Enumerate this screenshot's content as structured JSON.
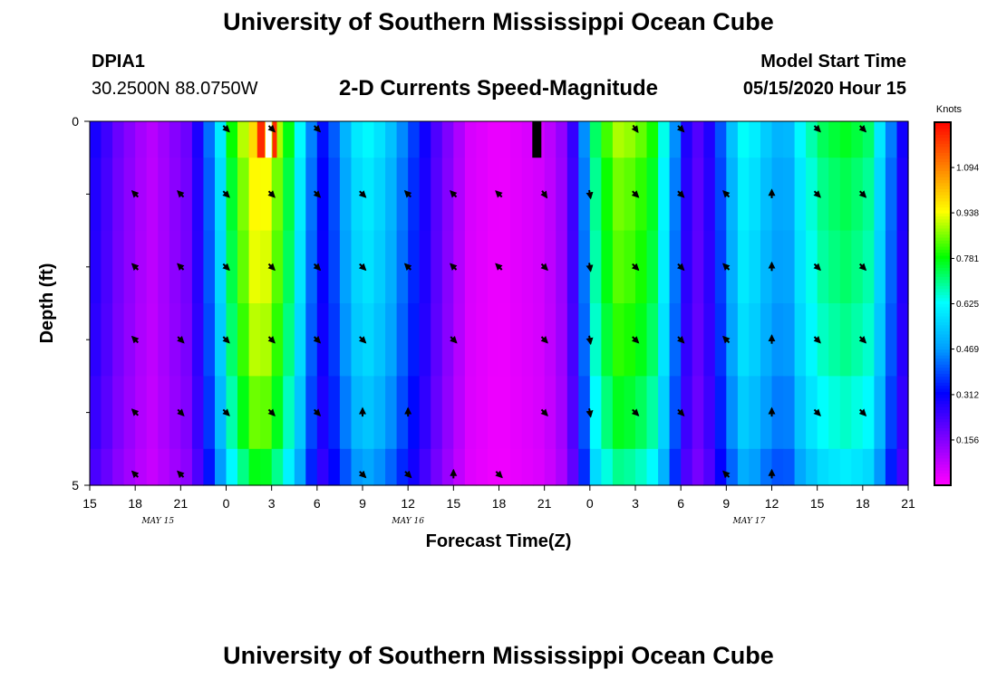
{
  "page": {
    "title_top": "University of Southern Mississippi Ocean Cube",
    "title_bottom": "University of Southern Mississippi Ocean Cube",
    "station": "DPIA1",
    "coords": "30.2500N 88.0750W",
    "plot_title": "2-D Currents Speed-Magnitude",
    "model_start_label": "Model Start Time",
    "model_start_value": "05/15/2020 Hour 15"
  },
  "chart_data": {
    "type": "heatmap",
    "title": "2-D Currents Speed-Magnitude",
    "xlabel": "Forecast Time(Z)",
    "ylabel": "Depth (ft)",
    "x_tick_labels": [
      "15",
      "18",
      "21",
      "0",
      "3",
      "6",
      "9",
      "12",
      "15",
      "18",
      "21",
      "0",
      "3",
      "6",
      "9",
      "12",
      "15",
      "18",
      "21"
    ],
    "x_hours_range": [
      0,
      54
    ],
    "day_labels": [
      {
        "hour": 4.5,
        "text": "MAY 15"
      },
      {
        "hour": 21,
        "text": "MAY 16"
      },
      {
        "hour": 43.5,
        "text": "MAY 17"
      }
    ],
    "y_range": [
      0,
      5
    ],
    "y_tick_labels": [
      "0",
      "5"
    ],
    "y_minor_ticks": [
      1,
      2,
      3,
      4
    ],
    "colorbar": {
      "title": "Knots",
      "range": [
        0,
        1.25
      ],
      "tick_values": [
        0.156,
        0.312,
        0.469,
        0.625,
        0.781,
        0.938,
        1.094
      ],
      "tick_labels": [
        "0.156",
        "0.312",
        "0.469",
        "0.625",
        "0.781",
        "0.938",
        "1.094"
      ],
      "colors": [
        "#ff00ff",
        "#7f00ff",
        "#0000ff",
        "#00a0ff",
        "#00ffff",
        "#00ff00",
        "#ffff00",
        "#ff8000",
        "#ff0000"
      ]
    },
    "depth_rows": [
      0.25,
      1,
      2,
      3,
      4,
      4.75
    ],
    "speed_profile": [
      [
        0,
        0.3
      ],
      [
        1.0,
        0.24
      ],
      [
        2.0,
        0.17
      ],
      [
        4.0,
        0.08
      ],
      [
        6.5,
        0.18
      ],
      [
        7.5,
        0.33
      ],
      [
        8.5,
        0.55
      ],
      [
        9.5,
        0.8
      ],
      [
        10.5,
        0.92
      ],
      [
        11.2,
        1.0
      ],
      [
        12.3,
        0.88
      ],
      [
        13.5,
        0.7
      ],
      [
        14.5,
        0.45
      ],
      [
        15.5,
        0.3
      ],
      [
        16.5,
        0.45
      ],
      [
        18.0,
        0.62
      ],
      [
        19.5,
        0.55
      ],
      [
        20.5,
        0.45
      ],
      [
        21.5,
        0.35
      ],
      [
        23.0,
        0.2
      ],
      [
        25.0,
        0.05
      ],
      [
        27.0,
        0.02
      ],
      [
        30.0,
        0.06
      ],
      [
        31.5,
        0.15
      ],
      [
        32.5,
        0.4
      ],
      [
        33.5,
        0.75
      ],
      [
        35.0,
        0.88
      ],
      [
        37.0,
        0.8
      ],
      [
        38.0,
        0.6
      ],
      [
        39.0,
        0.35
      ],
      [
        39.8,
        0.18
      ],
      [
        41.0,
        0.28
      ],
      [
        42.0,
        0.45
      ],
      [
        43.0,
        0.62
      ],
      [
        44.0,
        0.58
      ],
      [
        45.0,
        0.5
      ],
      [
        46.0,
        0.48
      ],
      [
        47.0,
        0.62
      ],
      [
        48.5,
        0.72
      ],
      [
        50.0,
        0.75
      ],
      [
        51.5,
        0.7
      ],
      [
        52.5,
        0.5
      ],
      [
        53.5,
        0.3
      ],
      [
        54.0,
        0.25
      ]
    ],
    "surface_override": [
      {
        "hour": 11.3,
        "width": 0.5,
        "color": "#ff2a00"
      },
      {
        "hour": 11.8,
        "width": 0.4,
        "color": "#ffffff"
      },
      {
        "hour": 12.2,
        "width": 0.3,
        "color": "#ff2a00"
      },
      {
        "hour": 29.5,
        "width": 0.6,
        "color": "#000000"
      }
    ],
    "vectors": [
      {
        "hour": 3,
        "depth": 1,
        "dir": 315
      },
      {
        "hour": 6,
        "depth": 1,
        "dir": 315
      },
      {
        "hour": 9,
        "depth": 0,
        "dir": 135
      },
      {
        "hour": 12,
        "depth": 0,
        "dir": 135
      },
      {
        "hour": 15,
        "depth": 0,
        "dir": 135
      },
      {
        "hour": 9,
        "depth": 1,
        "dir": 135
      },
      {
        "hour": 12,
        "depth": 1,
        "dir": 135
      },
      {
        "hour": 15,
        "depth": 1,
        "dir": 135
      },
      {
        "hour": 18,
        "depth": 1,
        "dir": 135
      },
      {
        "hour": 21,
        "depth": 1,
        "dir": 315
      },
      {
        "hour": 24,
        "depth": 1,
        "dir": 315
      },
      {
        "hour": 27,
        "depth": 1,
        "dir": 315
      },
      {
        "hour": 30,
        "depth": 1,
        "dir": 145
      },
      {
        "hour": 33,
        "depth": 1,
        "dir": 170
      },
      {
        "hour": 36,
        "depth": 0,
        "dir": 145
      },
      {
        "hour": 39,
        "depth": 0,
        "dir": 135
      },
      {
        "hour": 36,
        "depth": 1,
        "dir": 135
      },
      {
        "hour": 39,
        "depth": 1,
        "dir": 135
      },
      {
        "hour": 42,
        "depth": 1,
        "dir": 315
      },
      {
        "hour": 45,
        "depth": 1,
        "dir": 0
      },
      {
        "hour": 48,
        "depth": 0,
        "dir": 135
      },
      {
        "hour": 51,
        "depth": 0,
        "dir": 135
      },
      {
        "hour": 48,
        "depth": 1,
        "dir": 135
      },
      {
        "hour": 51,
        "depth": 1,
        "dir": 135
      },
      {
        "hour": 3,
        "depth": 2,
        "dir": 315
      },
      {
        "hour": 6,
        "depth": 2,
        "dir": 315
      },
      {
        "hour": 9,
        "depth": 2,
        "dir": 135
      },
      {
        "hour": 12,
        "depth": 2,
        "dir": 135
      },
      {
        "hour": 15,
        "depth": 2,
        "dir": 135
      },
      {
        "hour": 18,
        "depth": 2,
        "dir": 135
      },
      {
        "hour": 21,
        "depth": 2,
        "dir": 315
      },
      {
        "hour": 24,
        "depth": 2,
        "dir": 315
      },
      {
        "hour": 27,
        "depth": 2,
        "dir": 315
      },
      {
        "hour": 30,
        "depth": 2,
        "dir": 135
      },
      {
        "hour": 33,
        "depth": 2,
        "dir": 170
      },
      {
        "hour": 36,
        "depth": 2,
        "dir": 135
      },
      {
        "hour": 39,
        "depth": 2,
        "dir": 135
      },
      {
        "hour": 42,
        "depth": 2,
        "dir": 315
      },
      {
        "hour": 45,
        "depth": 2,
        "dir": 0
      },
      {
        "hour": 48,
        "depth": 2,
        "dir": 135
      },
      {
        "hour": 51,
        "depth": 2,
        "dir": 135
      },
      {
        "hour": 3,
        "depth": 3,
        "dir": 315
      },
      {
        "hour": 6,
        "depth": 3,
        "dir": 135
      },
      {
        "hour": 9,
        "depth": 3,
        "dir": 135
      },
      {
        "hour": 12,
        "depth": 3,
        "dir": 135
      },
      {
        "hour": 15,
        "depth": 3,
        "dir": 135
      },
      {
        "hour": 18,
        "depth": 3,
        "dir": 135
      },
      {
        "hour": 24,
        "depth": 3,
        "dir": 135
      },
      {
        "hour": 30,
        "depth": 3,
        "dir": 135
      },
      {
        "hour": 33,
        "depth": 3,
        "dir": 170
      },
      {
        "hour": 36,
        "depth": 3,
        "dir": 135
      },
      {
        "hour": 39,
        "depth": 3,
        "dir": 135
      },
      {
        "hour": 42,
        "depth": 3,
        "dir": 315
      },
      {
        "hour": 45,
        "depth": 3,
        "dir": 0
      },
      {
        "hour": 48,
        "depth": 3,
        "dir": 135
      },
      {
        "hour": 51,
        "depth": 3,
        "dir": 135
      },
      {
        "hour": 3,
        "depth": 4,
        "dir": 315
      },
      {
        "hour": 6,
        "depth": 4,
        "dir": 135
      },
      {
        "hour": 9,
        "depth": 4,
        "dir": 135
      },
      {
        "hour": 12,
        "depth": 4,
        "dir": 135
      },
      {
        "hour": 15,
        "depth": 4,
        "dir": 135
      },
      {
        "hour": 18,
        "depth": 4,
        "dir": 0
      },
      {
        "hour": 21,
        "depth": 4,
        "dir": 0
      },
      {
        "hour": 30,
        "depth": 4,
        "dir": 135
      },
      {
        "hour": 33,
        "depth": 4,
        "dir": 170
      },
      {
        "hour": 36,
        "depth": 4,
        "dir": 135
      },
      {
        "hour": 39,
        "depth": 4,
        "dir": 135
      },
      {
        "hour": 45,
        "depth": 4,
        "dir": 0
      },
      {
        "hour": 48,
        "depth": 4,
        "dir": 135
      },
      {
        "hour": 51,
        "depth": 4,
        "dir": 135
      },
      {
        "hour": 3,
        "depth": 5,
        "dir": 315
      },
      {
        "hour": 6,
        "depth": 5,
        "dir": 315
      },
      {
        "hour": 18,
        "depth": 5,
        "dir": 135
      },
      {
        "hour": 21,
        "depth": 5,
        "dir": 135
      },
      {
        "hour": 24,
        "depth": 5,
        "dir": 0
      },
      {
        "hour": 27,
        "depth": 5,
        "dir": 135
      },
      {
        "hour": 42,
        "depth": 5,
        "dir": 315
      },
      {
        "hour": 45,
        "depth": 5,
        "dir": 0
      }
    ]
  }
}
